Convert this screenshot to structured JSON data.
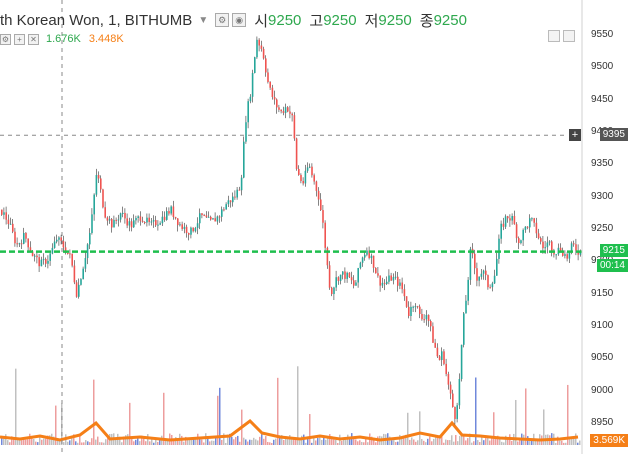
{
  "header": {
    "symbol_text": "th Korean Won, 1, BITHUMB",
    "open_label": "시",
    "open_value": "9250",
    "high_label": "고",
    "high_value": "9250",
    "low_label": "저",
    "low_value": "9250",
    "close_label": "종",
    "close_value": "9250"
  },
  "volume_legend": {
    "value_1": "1.676K",
    "value_2": "3.448K"
  },
  "price_axis": {
    "ticks": [
      "9550",
      "9500",
      "9450",
      "9400",
      "9350",
      "9300",
      "9250",
      "9200",
      "9150",
      "9100",
      "9050",
      "9000",
      "8950"
    ],
    "crosshair_price": "9395",
    "last_price": "9215",
    "countdown": "00:14",
    "volume_tag": "3.569K"
  },
  "colors": {
    "up": "#26a69a",
    "down": "#ef5350",
    "last_line": "#1fbf4e",
    "volume_ma": "#f57f17"
  },
  "chart_data": {
    "type": "candlestick",
    "ylim": [
      8935,
      9565
    ],
    "crosshair_y": 9395,
    "last_price_line": 9215,
    "price_path": [
      [
        0,
        9280
      ],
      [
        8,
        9260
      ],
      [
        16,
        9225
      ],
      [
        24,
        9240
      ],
      [
        32,
        9210
      ],
      [
        40,
        9195
      ],
      [
        48,
        9205
      ],
      [
        56,
        9235
      ],
      [
        62,
        9225
      ],
      [
        70,
        9205
      ],
      [
        76,
        9150
      ],
      [
        82,
        9190
      ],
      [
        90,
        9250
      ],
      [
        96,
        9340
      ],
      [
        104,
        9275
      ],
      [
        112,
        9255
      ],
      [
        120,
        9275
      ],
      [
        130,
        9255
      ],
      [
        140,
        9270
      ],
      [
        150,
        9255
      ],
      [
        160,
        9265
      ],
      [
        170,
        9280
      ],
      [
        180,
        9255
      ],
      [
        190,
        9245
      ],
      [
        200,
        9270
      ],
      [
        210,
        9260
      ],
      [
        218,
        9270
      ],
      [
        226,
        9290
      ],
      [
        234,
        9300
      ],
      [
        240,
        9320
      ],
      [
        245,
        9420
      ],
      [
        250,
        9465
      ],
      [
        256,
        9545
      ],
      [
        262,
        9525
      ],
      [
        268,
        9470
      ],
      [
        274,
        9445
      ],
      [
        280,
        9430
      ],
      [
        286,
        9440
      ],
      [
        292,
        9420
      ],
      [
        296,
        9340
      ],
      [
        302,
        9320
      ],
      [
        308,
        9350
      ],
      [
        314,
        9320
      ],
      [
        318,
        9300
      ],
      [
        322,
        9260
      ],
      [
        326,
        9200
      ],
      [
        330,
        9150
      ],
      [
        336,
        9175
      ],
      [
        342,
        9180
      ],
      [
        348,
        9175
      ],
      [
        354,
        9160
      ],
      [
        360,
        9200
      ],
      [
        366,
        9220
      ],
      [
        372,
        9200
      ],
      [
        378,
        9170
      ],
      [
        384,
        9165
      ],
      [
        390,
        9175
      ],
      [
        396,
        9170
      ],
      [
        402,
        9155
      ],
      [
        408,
        9120
      ],
      [
        414,
        9140
      ],
      [
        420,
        9110
      ],
      [
        426,
        9120
      ],
      [
        432,
        9080
      ],
      [
        438,
        9045
      ],
      [
        442,
        9060
      ],
      [
        446,
        9020
      ],
      [
        450,
        8990
      ],
      [
        454,
        8960
      ],
      [
        458,
        9000
      ],
      [
        462,
        9100
      ],
      [
        466,
        9150
      ],
      [
        470,
        9220
      ],
      [
        476,
        9175
      ],
      [
        482,
        9185
      ],
      [
        488,
        9160
      ],
      [
        494,
        9180
      ],
      [
        500,
        9250
      ],
      [
        506,
        9270
      ],
      [
        512,
        9265
      ],
      [
        518,
        9230
      ],
      [
        524,
        9250
      ],
      [
        530,
        9265
      ],
      [
        536,
        9245
      ],
      [
        542,
        9220
      ],
      [
        548,
        9230
      ],
      [
        554,
        9215
      ],
      [
        560,
        9220
      ],
      [
        566,
        9205
      ],
      [
        572,
        9225
      ],
      [
        578,
        9215
      ]
    ],
    "volume_ma_path": [
      [
        0,
        8
      ],
      [
        20,
        6
      ],
      [
        40,
        9
      ],
      [
        60,
        5
      ],
      [
        80,
        10
      ],
      [
        96,
        22
      ],
      [
        110,
        6
      ],
      [
        140,
        8
      ],
      [
        170,
        5
      ],
      [
        200,
        7
      ],
      [
        230,
        9
      ],
      [
        250,
        24
      ],
      [
        262,
        12
      ],
      [
        280,
        8
      ],
      [
        300,
        6
      ],
      [
        320,
        9
      ],
      [
        340,
        6
      ],
      [
        360,
        8
      ],
      [
        380,
        5
      ],
      [
        400,
        7
      ],
      [
        420,
        12
      ],
      [
        440,
        8
      ],
      [
        452,
        22
      ],
      [
        462,
        10
      ],
      [
        480,
        9
      ],
      [
        500,
        7
      ],
      [
        520,
        6
      ],
      [
        540,
        5
      ],
      [
        560,
        6
      ],
      [
        578,
        8
      ]
    ]
  }
}
